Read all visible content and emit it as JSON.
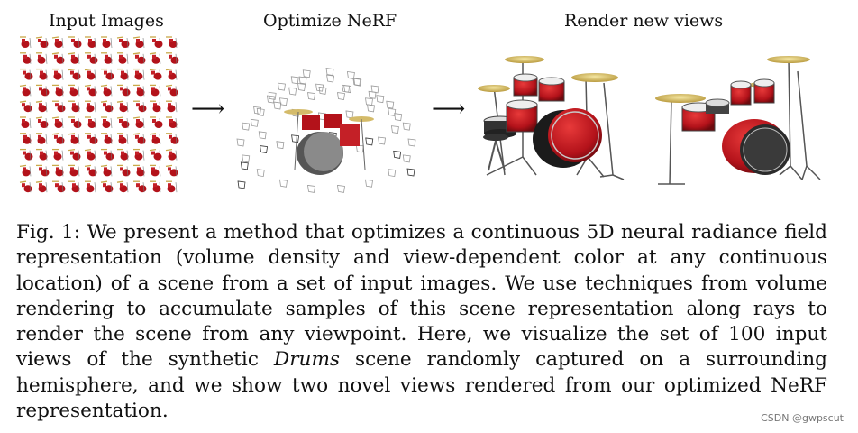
{
  "figure": {
    "titles": {
      "input_images": "Input Images",
      "optimize": "Optimize NeRF",
      "render": "Render new views"
    }
  },
  "caption": {
    "fig_label": "Fig. 1:",
    "text_1": "We present a method that optimizes a continuous 5D neural radiance field representation (volume density and view-dependent color at any continuous location) of a scene from a set of input images. We use techniques from volume rendering to accumulate samples of this scene representation along rays to render the scene from any viewpoint. Here, we visualize the set of 100 input views of the synthetic",
    "italic_word": "Drums",
    "text_2": "scene randomly captured on a surrounding hemisphere, and we show two novel views rendered from our optimized NeRF representation."
  },
  "watermark": "CSDN @gwpscut"
}
